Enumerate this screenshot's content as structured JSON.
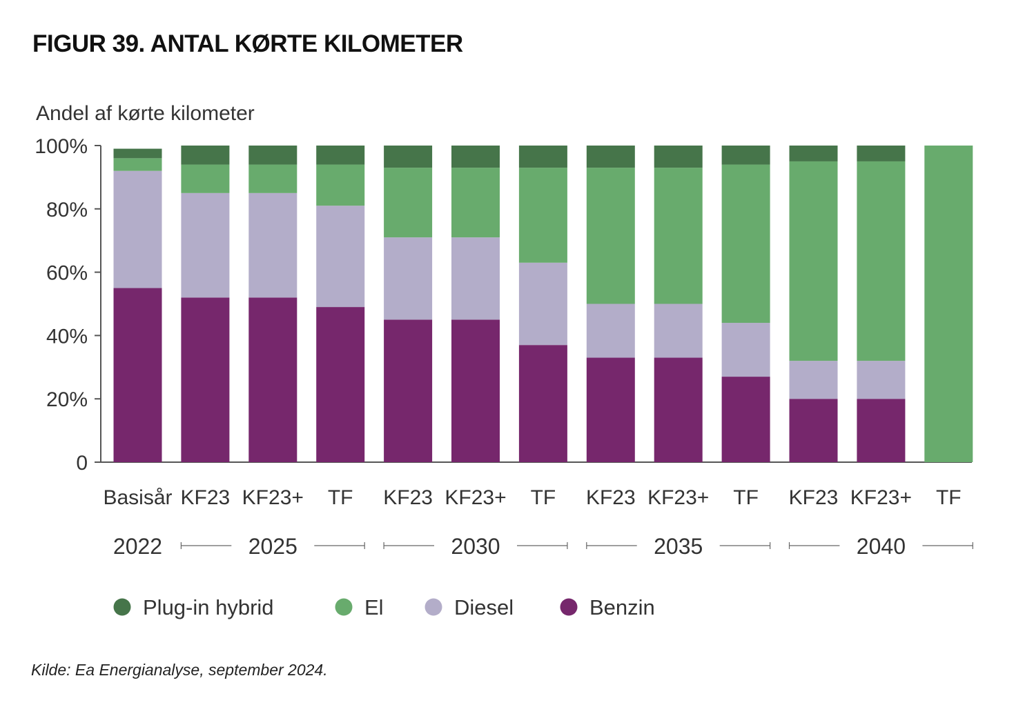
{
  "title": "FIGUR 39. ANTAL KØRTE KILOMETER",
  "source": "Kilde: Ea Energianalyse, september 2024.",
  "chart_data": {
    "type": "bar",
    "stacked": true,
    "ylabel": "Andel af kørte kilometer",
    "ylim": [
      0,
      100
    ],
    "yticks": [
      0,
      20,
      40,
      60,
      80,
      100
    ],
    "ytick_labels": [
      "0",
      "20%",
      "40%",
      "60%",
      "80%",
      "100%"
    ],
    "categories": [
      "Basisår",
      "KF23",
      "KF23+",
      "TF",
      "KF23",
      "KF23+",
      "TF",
      "KF23",
      "KF23+",
      "TF",
      "KF23",
      "KF23+",
      "TF"
    ],
    "groups": [
      {
        "label": "2022",
        "start": 0,
        "end": 0
      },
      {
        "label": "2025",
        "start": 1,
        "end": 3
      },
      {
        "label": "2030",
        "start": 4,
        "end": 6
      },
      {
        "label": "2035",
        "start": 7,
        "end": 9
      },
      {
        "label": "2040",
        "start": 10,
        "end": 12
      }
    ],
    "series": [
      {
        "name": "Benzin",
        "color": "#76276c",
        "values": [
          55,
          52,
          52,
          49,
          45,
          45,
          37,
          33,
          33,
          27,
          20,
          20,
          0
        ]
      },
      {
        "name": "Diesel",
        "color": "#b3adc9",
        "values": [
          37,
          33,
          33,
          32,
          26,
          26,
          26,
          17,
          17,
          17,
          12,
          12,
          0
        ]
      },
      {
        "name": "El",
        "color": "#68ab6d",
        "values": [
          4,
          9,
          9,
          13,
          22,
          22,
          30,
          43,
          43,
          50,
          63,
          63,
          100
        ]
      },
      {
        "name": "Plug-in hybrid",
        "color": "#46754a",
        "values": [
          3,
          6,
          6,
          6,
          7,
          7,
          7,
          7,
          7,
          6,
          5,
          5,
          0
        ]
      }
    ],
    "legend": {
      "position": "bottom",
      "order": [
        "Plug-in hybrid",
        "El",
        "Diesel",
        "Benzin"
      ]
    },
    "grid": false
  }
}
